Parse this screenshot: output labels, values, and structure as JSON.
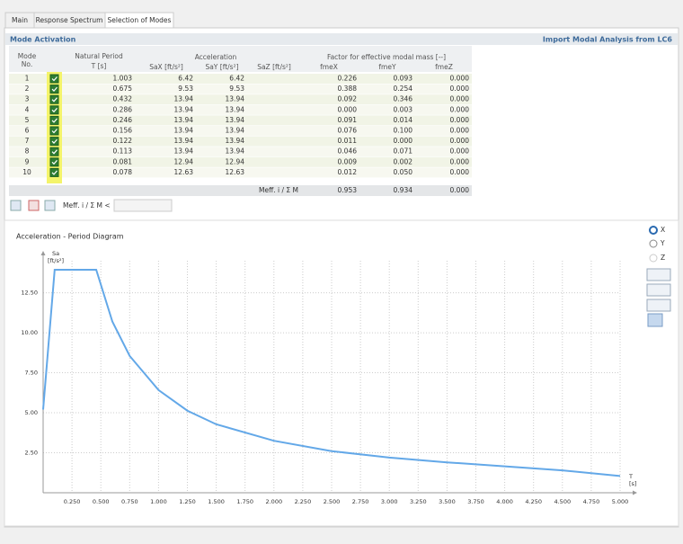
{
  "tabs": [
    "Main",
    "Response Spectrum",
    "Selection of Modes"
  ],
  "panel": {
    "title": "Mode Activation",
    "link": "Import Modal Analysis from LC6"
  },
  "table": {
    "headers": {
      "mode": "Mode",
      "no": "No.",
      "period": "Natural Period",
      "t": "T [s]",
      "acceleration": "Acceleration",
      "sax": "SaX [ft/s²]",
      "say": "SaY [ft/s²]",
      "saz": "SaZ [ft/s²]",
      "factor": "Factor for effective modal mass [--]",
      "fmex": "fmeX",
      "fmey": "fmeY",
      "fmez": "fmeZ"
    },
    "rows": [
      [
        "1",
        "1.003",
        "6.42",
        "6.42",
        "0.226",
        "0.093",
        "0.000"
      ],
      [
        "2",
        "0.675",
        "9.53",
        "9.53",
        "0.388",
        "0.254",
        "0.000"
      ],
      [
        "3",
        "0.432",
        "13.94",
        "13.94",
        "0.092",
        "0.346",
        "0.000"
      ],
      [
        "4",
        "0.286",
        "13.94",
        "13.94",
        "0.000",
        "0.003",
        "0.000"
      ],
      [
        "5",
        "0.246",
        "13.94",
        "13.94",
        "0.091",
        "0.014",
        "0.000"
      ],
      [
        "6",
        "0.156",
        "13.94",
        "13.94",
        "0.076",
        "0.100",
        "0.000"
      ],
      [
        "7",
        "0.122",
        "13.94",
        "13.94",
        "0.011",
        "0.000",
        "0.000"
      ],
      [
        "8",
        "0.113",
        "13.94",
        "13.94",
        "0.046",
        "0.071",
        "0.000"
      ],
      [
        "9",
        "0.081",
        "12.94",
        "12.94",
        "0.009",
        "0.002",
        "0.000"
      ],
      [
        "10",
        "0.078",
        "12.63",
        "12.63",
        "0.012",
        "0.050",
        "0.000"
      ]
    ],
    "sum_row": [
      "Meff. i / Σ M",
      "0.953",
      "0.934",
      "0.000"
    ]
  },
  "toolbar": {
    "filter_label": "Meff. i / Σ M <"
  },
  "options": [
    "X",
    "Y",
    "Z"
  ],
  "chart_data": {
    "type": "line",
    "title": "Acceleration - Period Diagram",
    "y_label": "Sa",
    "y_unit": "[ft/s²]",
    "x_label": "T",
    "x_unit": "[s]",
    "x": [
      0,
      0.1,
      0.46,
      0.6,
      0.75,
      1.0,
      1.25,
      1.5,
      2.0,
      2.5,
      3.0,
      3.5,
      4.0,
      4.5,
      5.0
    ],
    "series": [
      {
        "name": "Sa",
        "color": "#63a8e8",
        "values": [
          5.2,
          13.94,
          13.94,
          10.7,
          8.55,
          6.42,
          5.13,
          4.28,
          3.25,
          2.6,
          2.2,
          1.9,
          1.65,
          1.4,
          1.05
        ]
      }
    ],
    "xlim": [
      0,
      5.0
    ],
    "ylim": [
      0,
      14.5
    ],
    "xticks": [
      {
        "value": 0.25,
        "label": "0.250"
      },
      {
        "value": 0.5,
        "label": "0.500"
      },
      {
        "value": 0.75,
        "label": "0.750"
      },
      {
        "value": 1.0,
        "label": "1.000"
      },
      {
        "value": 1.25,
        "label": "1.250"
      },
      {
        "value": 1.5,
        "label": "1.500"
      },
      {
        "value": 1.75,
        "label": "1.750"
      },
      {
        "value": 2.0,
        "label": "2.000"
      },
      {
        "value": 2.25,
        "label": "2.250"
      },
      {
        "value": 2.5,
        "label": "2.500"
      },
      {
        "value": 2.75,
        "label": "2.750"
      },
      {
        "value": 3.0,
        "label": "3.000"
      },
      {
        "value": 3.25,
        "label": "3.250"
      },
      {
        "value": 3.5,
        "label": "3.500"
      },
      {
        "value": 3.75,
        "label": "3.750"
      },
      {
        "value": 4.0,
        "label": "4.000"
      },
      {
        "value": 4.25,
        "label": "4.250"
      },
      {
        "value": 4.5,
        "label": "4.500"
      },
      {
        "value": 4.75,
        "label": "4.750"
      },
      {
        "value": 5.0,
        "label": "5.000"
      }
    ],
    "yticks": [
      {
        "value": 2.5,
        "label": "2.50"
      },
      {
        "value": 5.0,
        "label": "5.00"
      },
      {
        "value": 7.5,
        "label": "7.50"
      },
      {
        "value": 10.0,
        "label": "10.00"
      },
      {
        "value": 12.5,
        "label": "12.50"
      }
    ],
    "grid": true
  }
}
